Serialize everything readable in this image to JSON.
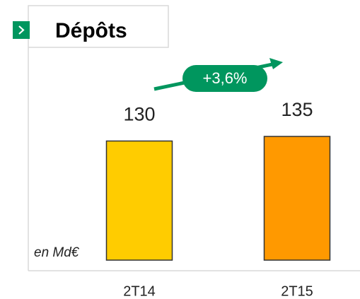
{
  "chart_data": {
    "type": "bar",
    "title": "Dépôts",
    "unit_label": "en Md€",
    "annotation": "+3,6%",
    "categories": [
      "2T14",
      "2T15"
    ],
    "values": [
      130,
      135
    ],
    "colors": [
      "#FFCC00",
      "#FF9900"
    ]
  }
}
